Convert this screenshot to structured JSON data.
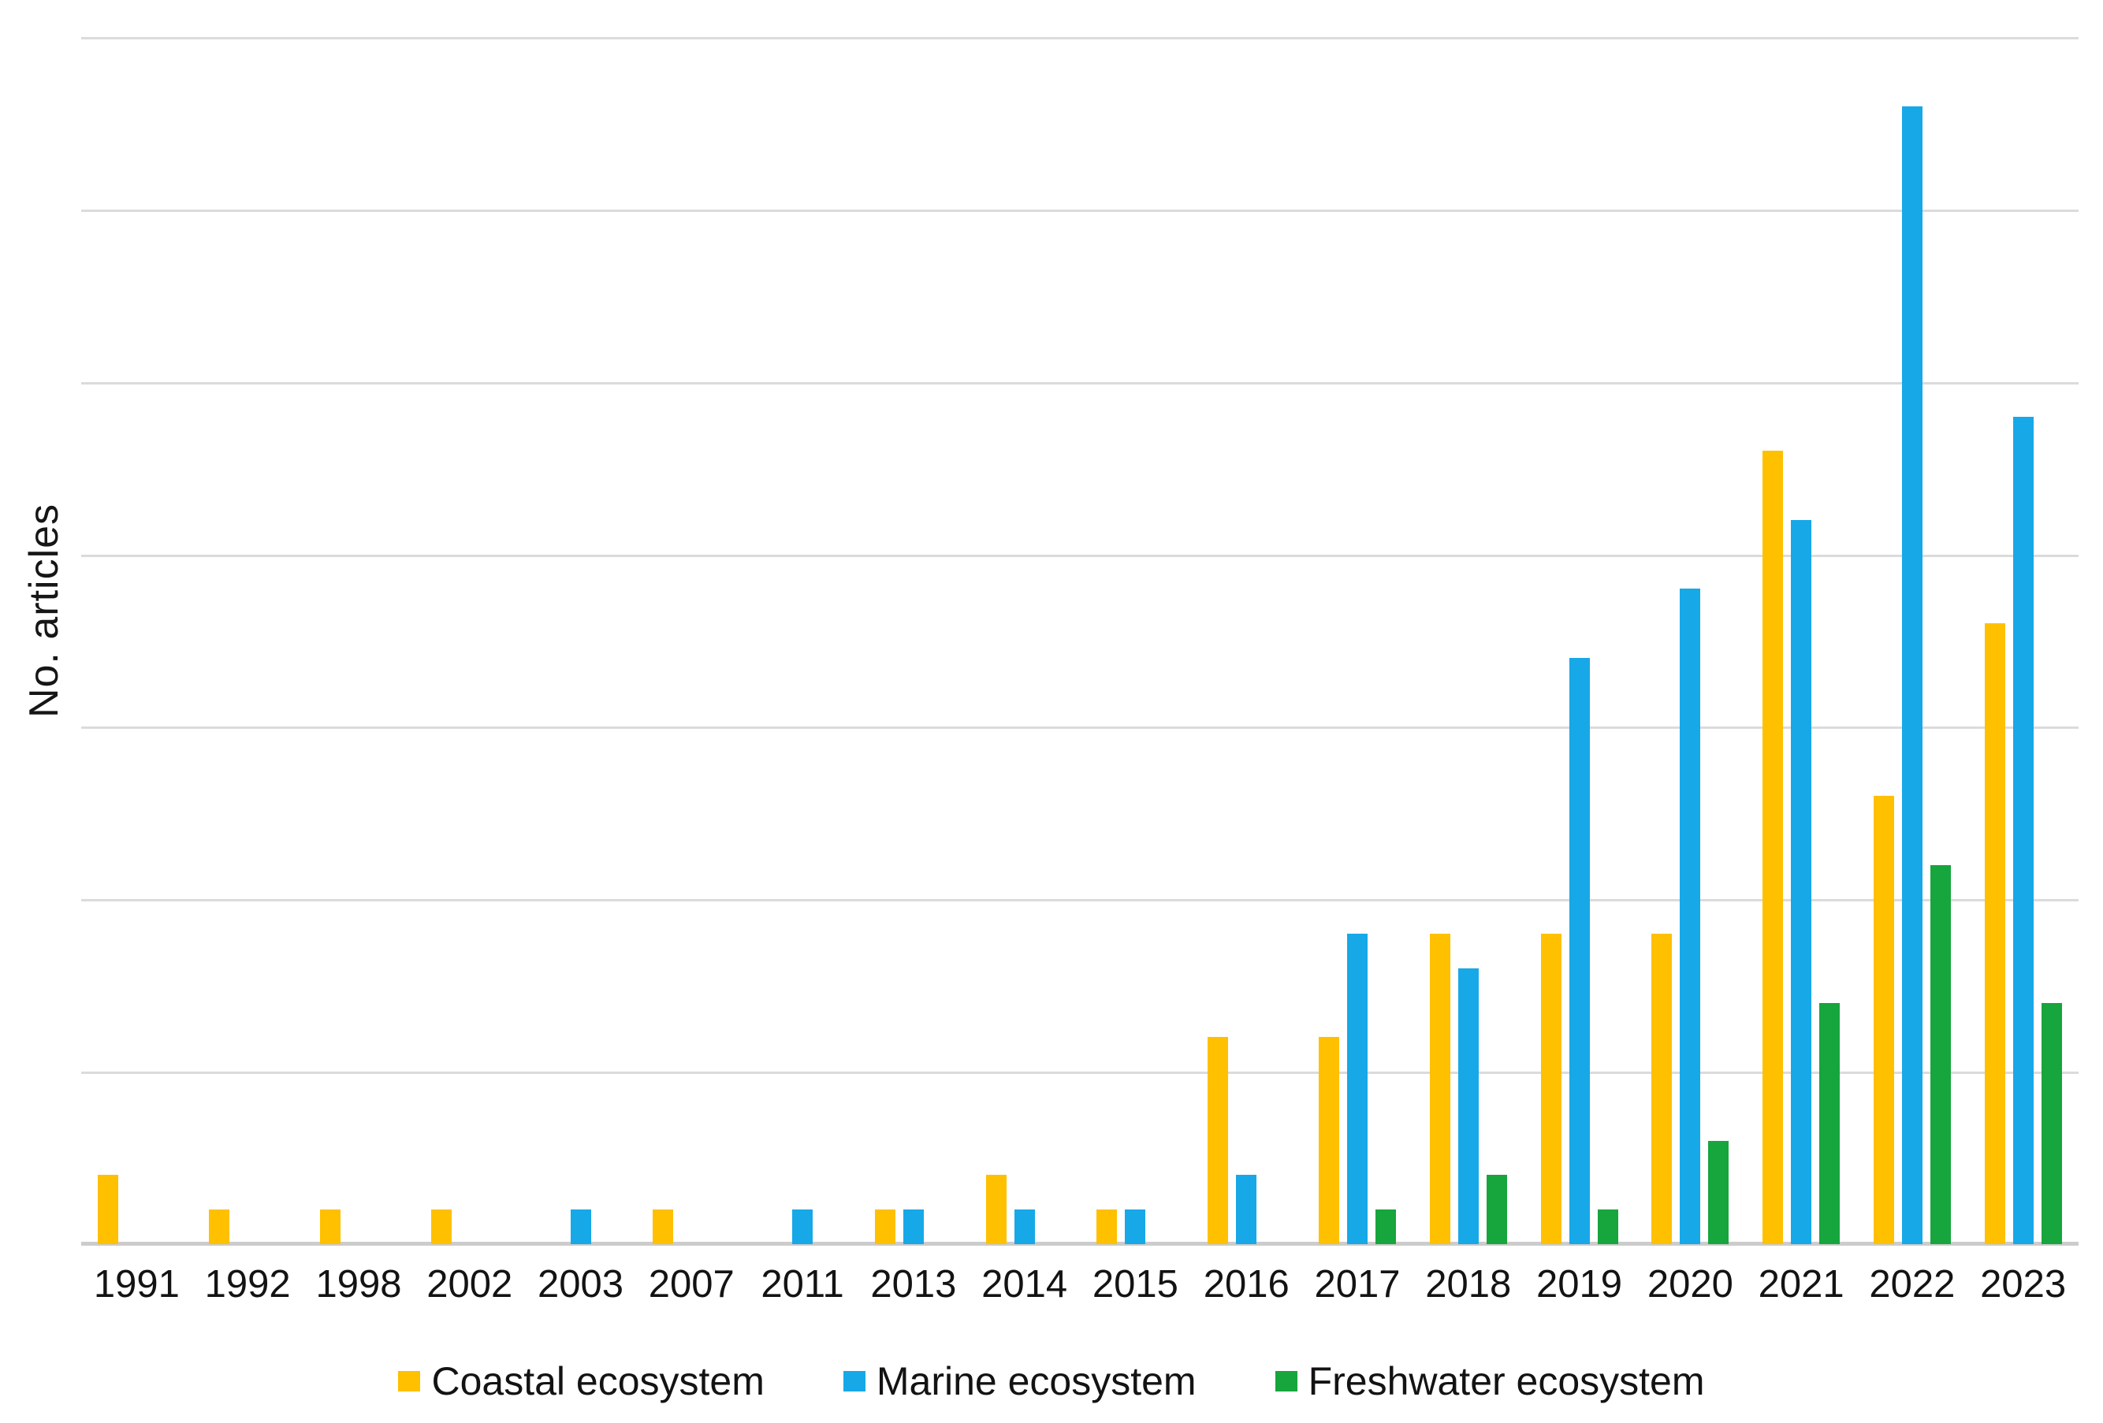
{
  "chart_data": {
    "type": "bar",
    "title": "",
    "xlabel": "",
    "ylabel": "No. articles",
    "categories": [
      "1991",
      "1992",
      "1998",
      "2002",
      "2003",
      "2007",
      "2011",
      "2013",
      "2014",
      "2015",
      "2016",
      "2017",
      "2018",
      "2019",
      "2020",
      "2021",
      "2022",
      "2023"
    ],
    "series": [
      {
        "name": "Coastal ecosystem",
        "color": "#FFC000",
        "values": [
          4,
          2,
          2,
          2,
          0,
          2,
          0,
          2,
          4,
          2,
          12,
          12,
          18,
          18,
          18,
          46,
          26,
          36
        ]
      },
      {
        "name": "Marine ecosystem",
        "color": "#17A8E8",
        "values": [
          0,
          0,
          0,
          0,
          2,
          0,
          2,
          2,
          2,
          2,
          4,
          18,
          16,
          34,
          38,
          42,
          66,
          48
        ]
      },
      {
        "name": "Freshwater ecosystem",
        "color": "#17A53D",
        "values": [
          0,
          0,
          0,
          0,
          0,
          0,
          0,
          0,
          0,
          0,
          0,
          2,
          4,
          2,
          6,
          14,
          22,
          14
        ]
      }
    ],
    "ylim": [
      0,
      70
    ],
    "gridline_step": 10,
    "grid": "horizontal",
    "y_tick_labels_shown": false,
    "legend_position": "bottom",
    "background": "#ffffff",
    "gridline_color": "#dbdbdb",
    "baseline_color": "#cccccc"
  }
}
